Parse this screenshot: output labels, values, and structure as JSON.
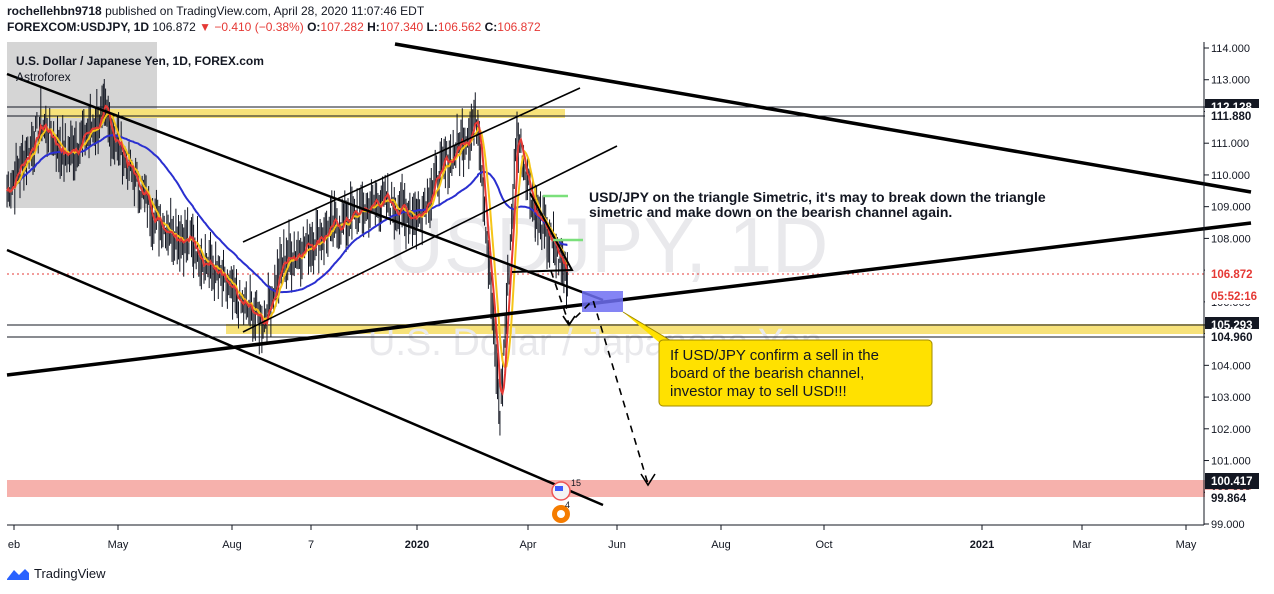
{
  "header": {
    "user": "rochellehbn9718",
    "published": "published on TradingView.com, April 28, 2020 11:07:46 EDT",
    "symbol_line": "FOREXCOM:USDJPY, 1D",
    "price": "106.872",
    "change": "▼ −0.410 (−0.38%)",
    "o_label": "O:",
    "o": "107.282",
    "h_label": "H:",
    "h": "107.340",
    "l_label": "L:",
    "l": "106.562",
    "c_label": "C:",
    "c": "106.872"
  },
  "legend": {
    "title": "U.S. Dollar / Japanese Yen, 1D, FOREX.com",
    "indicator": "Astroforex"
  },
  "watermark": {
    "symbol": "USDJPY, 1D",
    "name": "U.S. Dollar / Japanese Yen"
  },
  "annotations": {
    "note1_line1": "USD/JPY on the triangle Simetric, it's may to break down the triangle",
    "note1_line2": "simetric and make down on the bearish channel again.",
    "callout_line1": "If USD/JPY confirm a sell in the",
    "callout_line2": "board of the bearish channel,",
    "callout_line3": "investor may to sell USD!!!"
  },
  "price_scale": {
    "ticks": [
      "114.000",
      "113.000",
      "112.000",
      "111.000",
      "110.000",
      "109.000",
      "108.000",
      "107.000",
      "106.000",
      "105.000",
      "104.000",
      "103.000",
      "102.000",
      "101.000",
      "100.000",
      "99.000"
    ],
    "labels": [
      {
        "text": "112.128",
        "bg": "#131722",
        "fg": "#ffffff"
      },
      {
        "text": "111.880",
        "bg": "#ffffff",
        "fg": "#131722"
      },
      {
        "text": "106.872",
        "bg": "#ffffff",
        "fg": "#e53935"
      },
      {
        "text": "05:52:16",
        "bg": "#ffffff",
        "fg": "#e53935"
      },
      {
        "text": "105.293",
        "bg": "#131722",
        "fg": "#ffffff"
      },
      {
        "text": "104.960",
        "bg": "#ffffff",
        "fg": "#131722"
      },
      {
        "text": "100.417",
        "bg": "#131722",
        "fg": "#ffffff"
      },
      {
        "text": "99.864",
        "bg": "#ffffff",
        "fg": "#131722"
      }
    ]
  },
  "time_axis": {
    "labels": [
      "eb",
      "May",
      "Aug",
      "7",
      "2020",
      "Apr",
      "Jun",
      "Aug",
      "Oct",
      "2021",
      "Mar",
      "May"
    ]
  },
  "events": {
    "flag_count": "15",
    "earn_count": "4"
  },
  "footer": {
    "brand": "TradingView"
  },
  "colors": {
    "up_down_bars": "#131722",
    "ema_fast": "#e53935",
    "ema_mid": "#f5c518",
    "ma_slow": "#2a2fd0",
    "yellow_zone": "#f7e27a",
    "pink_zone": "#f6b1ac",
    "blue_box": "#6f6ff2",
    "callout": "#ffe100"
  },
  "chart_data": {
    "type": "candlestick",
    "symbol": "FOREXCOM:USDJPY",
    "interval": "1D",
    "ylim": [
      98.8,
      114.2
    ],
    "x_range": [
      "2019-02",
      "2021-05"
    ],
    "close_series_approx": [
      [
        "2019-02-01",
        109.5
      ],
      [
        "2019-03-01",
        111.6
      ],
      [
        "2019-03-20",
        110.6
      ],
      [
        "2019-04-20",
        111.9
      ],
      [
        "2019-05-10",
        110.2
      ],
      [
        "2019-06-01",
        108.6
      ],
      [
        "2019-07-01",
        107.8
      ],
      [
        "2019-08-05",
        106.0
      ],
      [
        "2019-08-25",
        105.4
      ],
      [
        "2019-09-10",
        107.3
      ],
      [
        "2019-10-01",
        107.9
      ],
      [
        "2019-11-01",
        108.6
      ],
      [
        "2019-12-01",
        109.2
      ],
      [
        "2020-01-01",
        108.7
      ],
      [
        "2020-01-20",
        110.1
      ],
      [
        "2020-02-20",
        111.8
      ],
      [
        "2020-03-09",
        102.4
      ],
      [
        "2020-03-23",
        111.4
      ],
      [
        "2020-04-06",
        108.8
      ],
      [
        "2020-04-28",
        106.87
      ]
    ],
    "levels": [
      112.128,
      111.88,
      106.872,
      105.293,
      104.96,
      100.417,
      99.864
    ]
  }
}
